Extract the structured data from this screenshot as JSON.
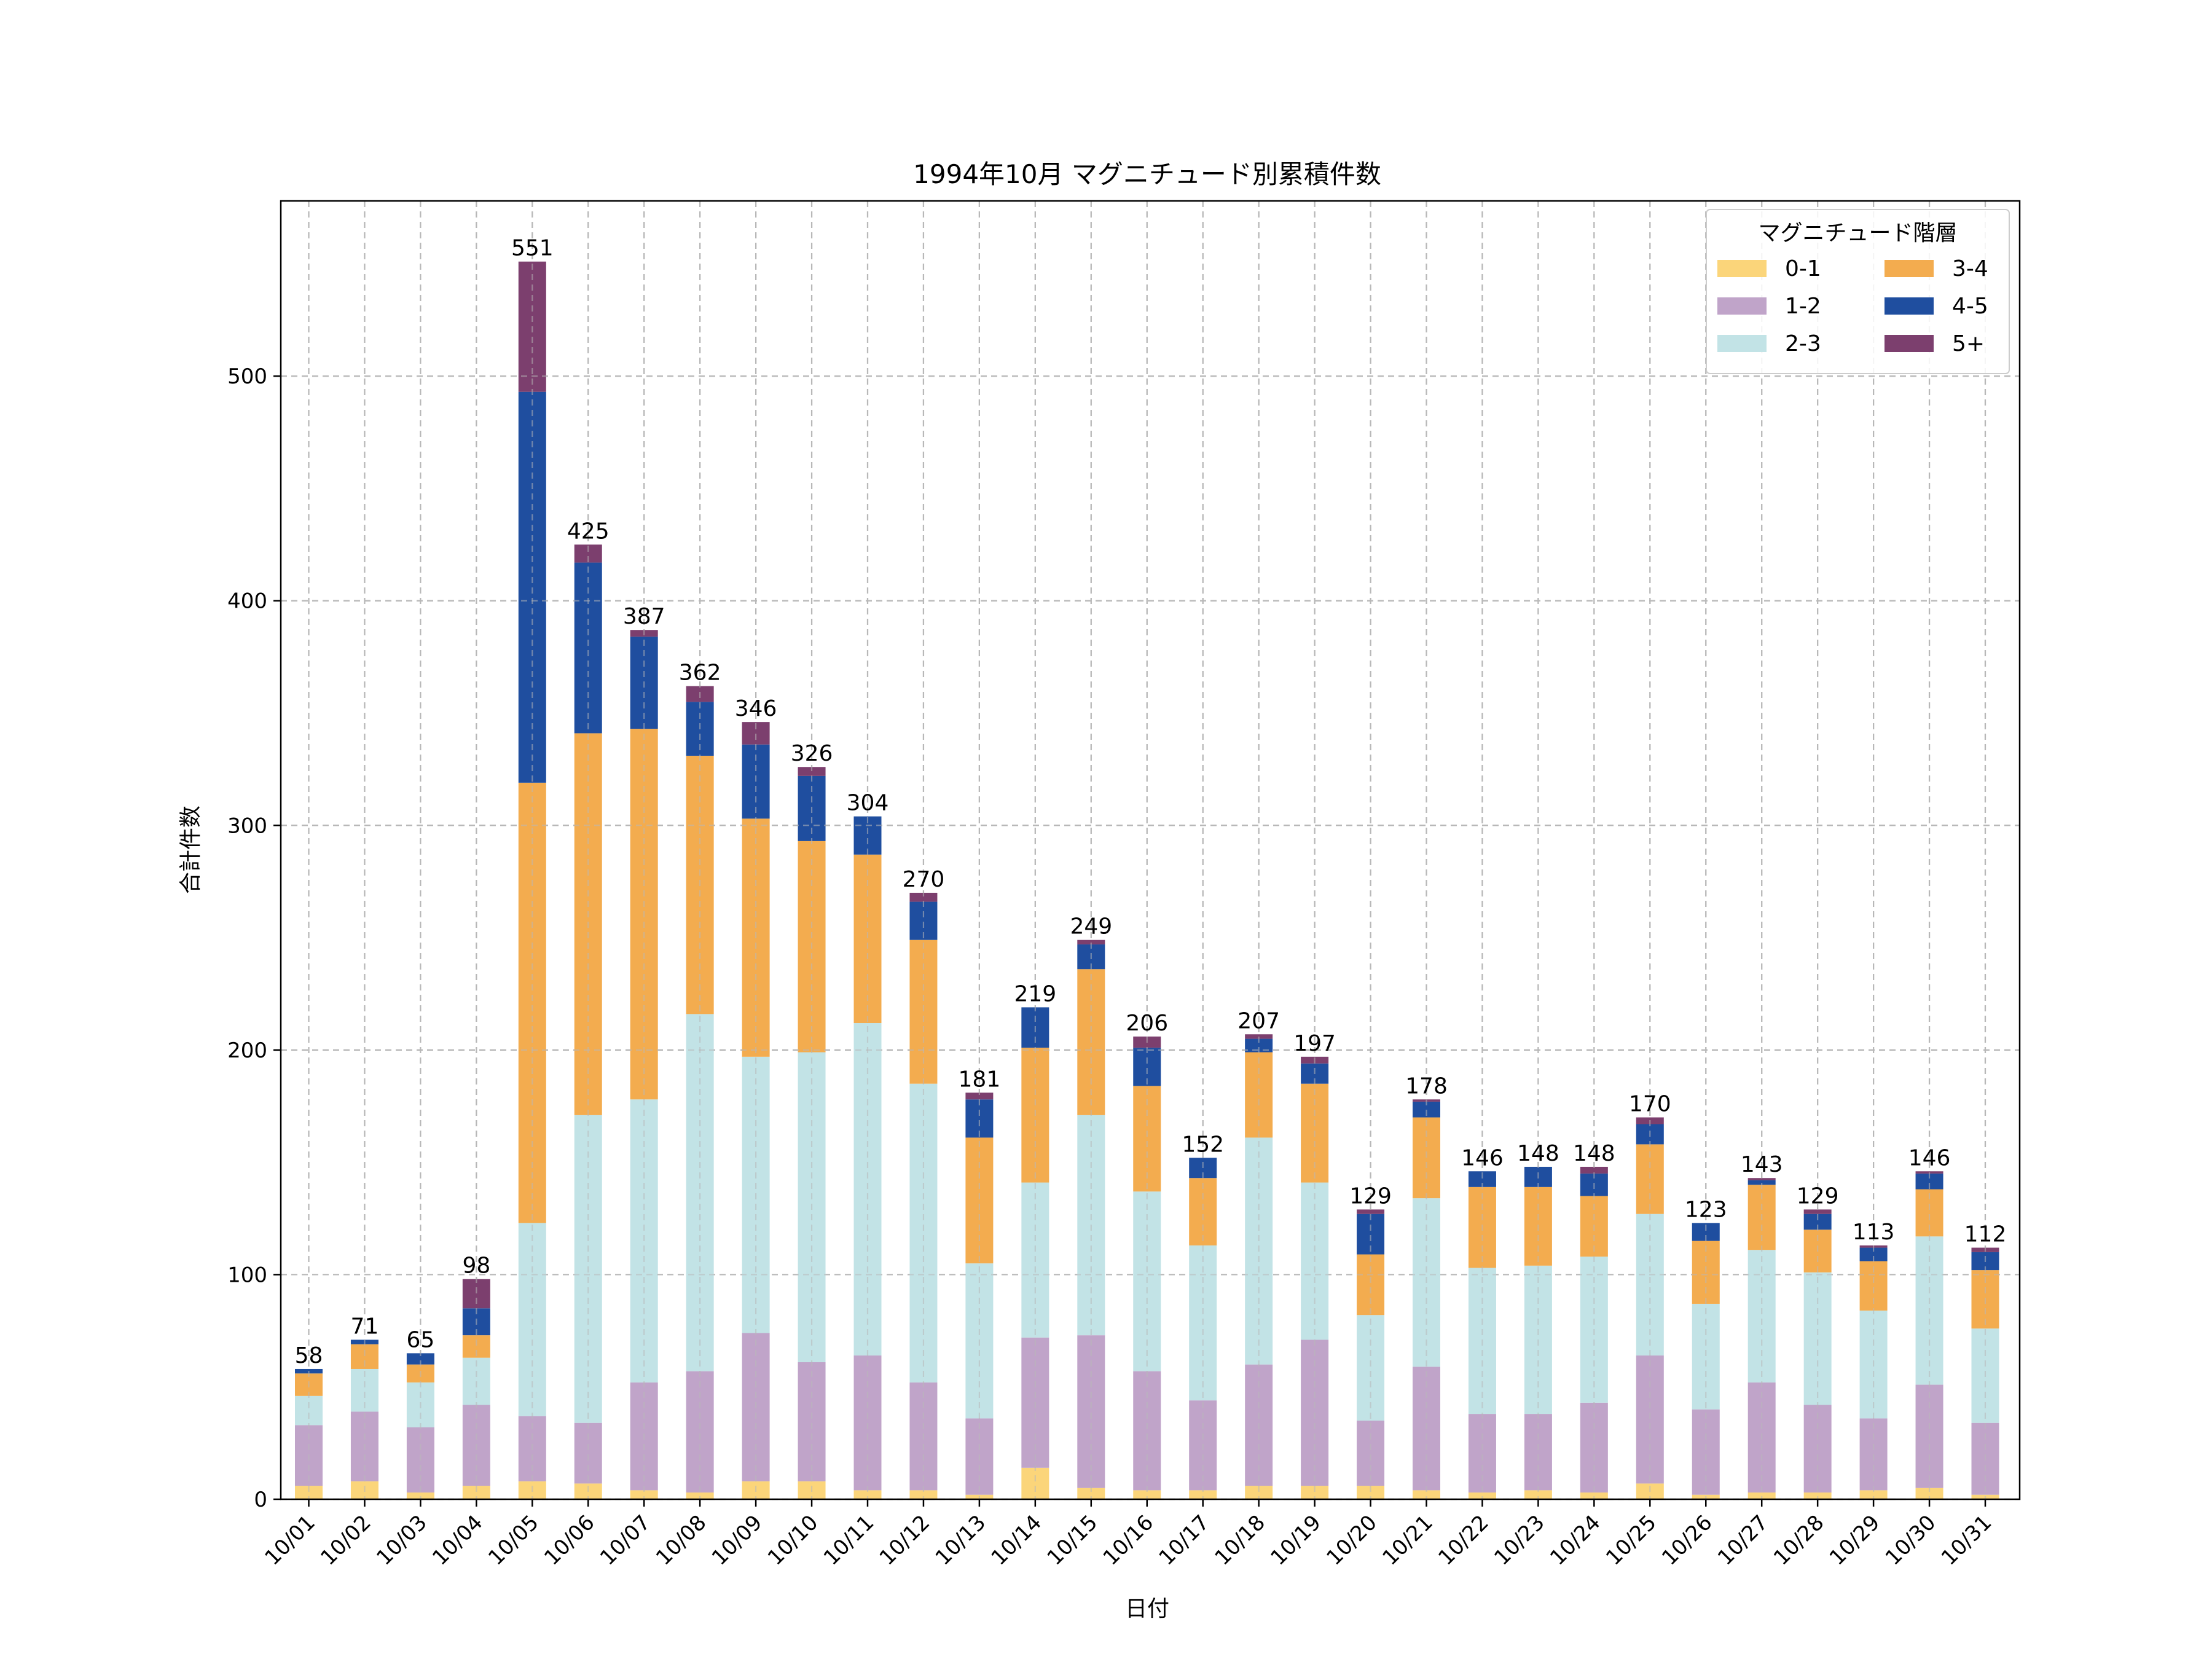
{
  "chart_data": {
    "type": "bar",
    "stacked": true,
    "title": "1994年10月 マグニチュード別累積件数",
    "xlabel": "日付",
    "ylabel": "合計件数",
    "ylim": [
      0,
      578
    ],
    "yticks": [
      0,
      100,
      200,
      300,
      400,
      500
    ],
    "grid": true,
    "legend": {
      "title": "マグニチュード階層",
      "placement": "top-right"
    },
    "categories": [
      "10/01",
      "10/02",
      "10/03",
      "10/04",
      "10/05",
      "10/06",
      "10/07",
      "10/08",
      "10/09",
      "10/10",
      "10/11",
      "10/12",
      "10/13",
      "10/14",
      "10/15",
      "10/16",
      "10/17",
      "10/18",
      "10/19",
      "10/20",
      "10/21",
      "10/22",
      "10/23",
      "10/24",
      "10/25",
      "10/26",
      "10/27",
      "10/28",
      "10/29",
      "10/30",
      "10/31"
    ],
    "series": [
      {
        "name": "0-1",
        "color": "#fbd57a",
        "values": [
          6,
          8,
          3,
          6,
          8,
          7,
          4,
          3,
          8,
          8,
          4,
          4,
          2,
          14,
          5,
          4,
          4,
          6,
          6,
          6,
          4,
          3,
          4,
          3,
          7,
          2,
          3,
          3,
          4,
          5,
          2
        ]
      },
      {
        "name": "1-2",
        "color": "#c0a4c9",
        "values": [
          27,
          31,
          29,
          36,
          29,
          27,
          48,
          54,
          66,
          53,
          60,
          48,
          34,
          58,
          68,
          53,
          40,
          54,
          65,
          29,
          55,
          35,
          34,
          40,
          57,
          38,
          49,
          39,
          32,
          46,
          32
        ]
      },
      {
        "name": "2-3",
        "color": "#c2e3e6",
        "values": [
          13,
          19,
          20,
          21,
          86,
          137,
          126,
          159,
          123,
          138,
          148,
          133,
          69,
          69,
          98,
          80,
          69,
          101,
          70,
          47,
          75,
          65,
          66,
          65,
          63,
          47,
          59,
          59,
          48,
          66,
          42
        ]
      },
      {
        "name": "3-4",
        "color": "#f3ac4f",
        "values": [
          10,
          11,
          8,
          10,
          196,
          170,
          165,
          115,
          106,
          94,
          75,
          64,
          56,
          60,
          65,
          47,
          30,
          38,
          44,
          27,
          36,
          36,
          35,
          27,
          31,
          28,
          29,
          19,
          22,
          21,
          26
        ]
      },
      {
        "name": "4-5",
        "color": "#1f4e9f",
        "values": [
          2,
          2,
          5,
          12,
          174,
          76,
          41,
          24,
          33,
          29,
          17,
          17,
          17,
          18,
          11,
          17,
          9,
          6,
          9,
          18,
          7,
          7,
          9,
          10,
          9,
          8,
          2,
          7,
          6,
          7,
          8
        ]
      },
      {
        "name": "5+",
        "color": "#7c3f6e",
        "values": [
          0,
          0,
          0,
          13,
          58,
          8,
          3,
          7,
          10,
          4,
          0,
          4,
          3,
          0,
          2,
          5,
          0,
          2,
          3,
          2,
          1,
          0,
          0,
          3,
          3,
          0,
          1,
          2,
          1,
          1,
          2
        ]
      }
    ],
    "totals": [
      58,
      71,
      65,
      98,
      551,
      425,
      387,
      362,
      346,
      326,
      304,
      270,
      181,
      219,
      249,
      206,
      152,
      207,
      197,
      129,
      178,
      146,
      148,
      148,
      170,
      123,
      143,
      129,
      113,
      146,
      112
    ]
  }
}
